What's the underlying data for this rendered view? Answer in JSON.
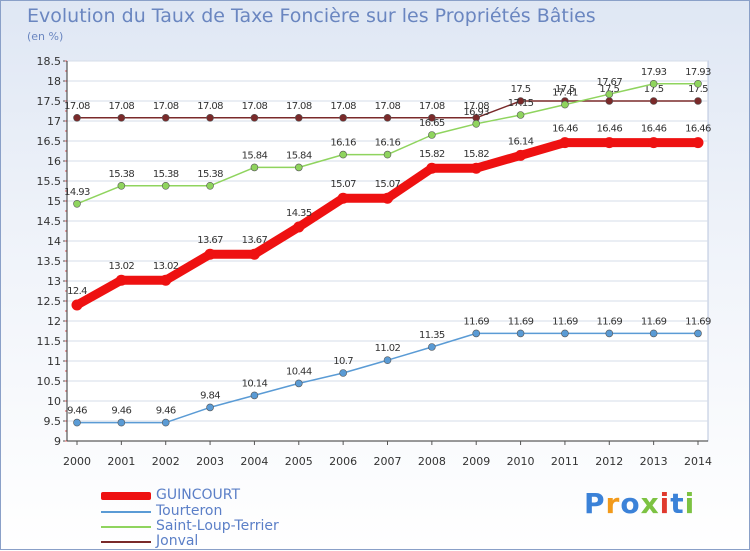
{
  "title": "Evolution du Taux de Taxe Foncière sur les Propriétés Bâties",
  "unit_label": "(en %)",
  "logo_text": "Proxiti",
  "logo_colors": [
    "#3b82d8",
    "#f29a1a",
    "#3b82d8",
    "#7cc242",
    "#e03a2e",
    "#3b82d8",
    "#7cc242"
  ],
  "chart_data": {
    "type": "line",
    "title": "Evolution du Taux de Taxe Foncière sur les Propriétés Bâties",
    "ylabel": "(en %)",
    "xlabel": "",
    "ylim": [
      9,
      18.5
    ],
    "y_ticks": [
      "9",
      "9.5",
      "10",
      "10.5",
      "11",
      "11.5",
      "12",
      "12.5",
      "13",
      "13.5",
      "14",
      "14.5",
      "15",
      "15.5",
      "16",
      "16.5",
      "17",
      "17.5",
      "18",
      "18.5"
    ],
    "categories": [
      "2000",
      "2001",
      "2002",
      "2003",
      "2004",
      "2005",
      "2006",
      "2007",
      "2008",
      "2009",
      "2010",
      "2011",
      "2012",
      "2013",
      "2014"
    ],
    "series": [
      {
        "name": "Jonval",
        "color": "#7a2a2a",
        "values": [
          17.08,
          17.08,
          17.08,
          17.08,
          17.08,
          17.08,
          17.08,
          17.08,
          17.08,
          17.08,
          17.5,
          17.5,
          17.5,
          17.5,
          17.5
        ],
        "labels": [
          "17.08",
          "17.08",
          "17.08",
          "17.08",
          "17.08",
          "17.08",
          "17.08",
          "17.08",
          "17.08",
          "17.08",
          "17.5",
          "17.5",
          "17.5",
          "17.5",
          "17.5"
        ]
      },
      {
        "name": "Saint-Loup-Terrier",
        "color": "#8fd45e",
        "values": [
          14.93,
          15.38,
          15.38,
          15.38,
          15.84,
          15.84,
          16.16,
          16.16,
          16.65,
          16.93,
          17.15,
          17.41,
          17.67,
          17.93,
          17.93
        ],
        "labels": [
          "14.93",
          "15.38",
          "15.38",
          "15.38",
          "15.84",
          "15.84",
          "16.16",
          "16.16",
          "16.65",
          "16.93",
          "17.15",
          "17.41",
          "17.67",
          "17.93",
          "17.93"
        ]
      },
      {
        "name": "Tourteron",
        "color": "#5a9bd5",
        "values": [
          9.46,
          9.46,
          9.46,
          9.84,
          10.14,
          10.44,
          10.7,
          11.02,
          11.35,
          11.69,
          11.69,
          11.69,
          11.69,
          11.69,
          11.69
        ],
        "labels": [
          "9.46",
          "9.46",
          "9.46",
          "9.84",
          "10.14",
          "10.44",
          "10.7",
          "11.02",
          "11.35",
          "11.69",
          "11.69",
          "11.69",
          "11.69",
          "11.69",
          "11.69"
        ]
      },
      {
        "name": "GUINCOURT",
        "color": "#ee1111",
        "values": [
          12.4,
          13.02,
          13.02,
          13.67,
          13.67,
          14.35,
          15.07,
          15.07,
          15.82,
          15.82,
          16.14,
          16.46,
          16.46,
          16.46,
          16.46
        ],
        "labels": [
          "12.4",
          "13.02",
          "13.02",
          "13.67",
          "13.67",
          "14.35",
          "15.07",
          "15.07",
          "15.82",
          "15.82",
          "16.14",
          "16.46",
          "16.46",
          "16.46",
          "16.46"
        ]
      }
    ],
    "legend": [
      {
        "name": "GUINCOURT",
        "color": "#ee1111",
        "style": "thick"
      },
      {
        "name": "Tourteron",
        "color": "#5a9bd5",
        "style": "thin"
      },
      {
        "name": "Saint-Loup-Terrier",
        "color": "#8fd45e",
        "style": "thin"
      },
      {
        "name": "Jonval",
        "color": "#7a2a2a",
        "style": "thin"
      }
    ],
    "legend_position": "bottom-left"
  }
}
